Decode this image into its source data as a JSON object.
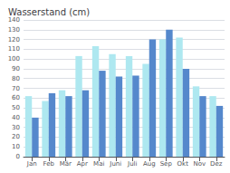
{
  "chart_data": {
    "type": "bar",
    "title": "Wasserstand (cm)",
    "categories": [
      "Jan",
      "Feb",
      "Mär",
      "Apr",
      "Mai",
      "Juni",
      "Juli",
      "Aug",
      "Sep",
      "Okt",
      "Nov",
      "Dez"
    ],
    "series": [
      {
        "color": "#aee8f0",
        "values": [
          62,
          57,
          68,
          103,
          113,
          105,
          103,
          95,
          120,
          122,
          72,
          62
        ]
      },
      {
        "color": "#5588cc",
        "values": [
          40,
          65,
          62,
          68,
          88,
          82,
          83,
          120,
          130,
          90,
          62,
          52
        ]
      }
    ],
    "ylim": [
      0,
      140
    ],
    "yticks": [
      0,
      10,
      20,
      30,
      40,
      50,
      60,
      70,
      80,
      90,
      100,
      110,
      120,
      130,
      140
    ],
    "grid": true
  }
}
